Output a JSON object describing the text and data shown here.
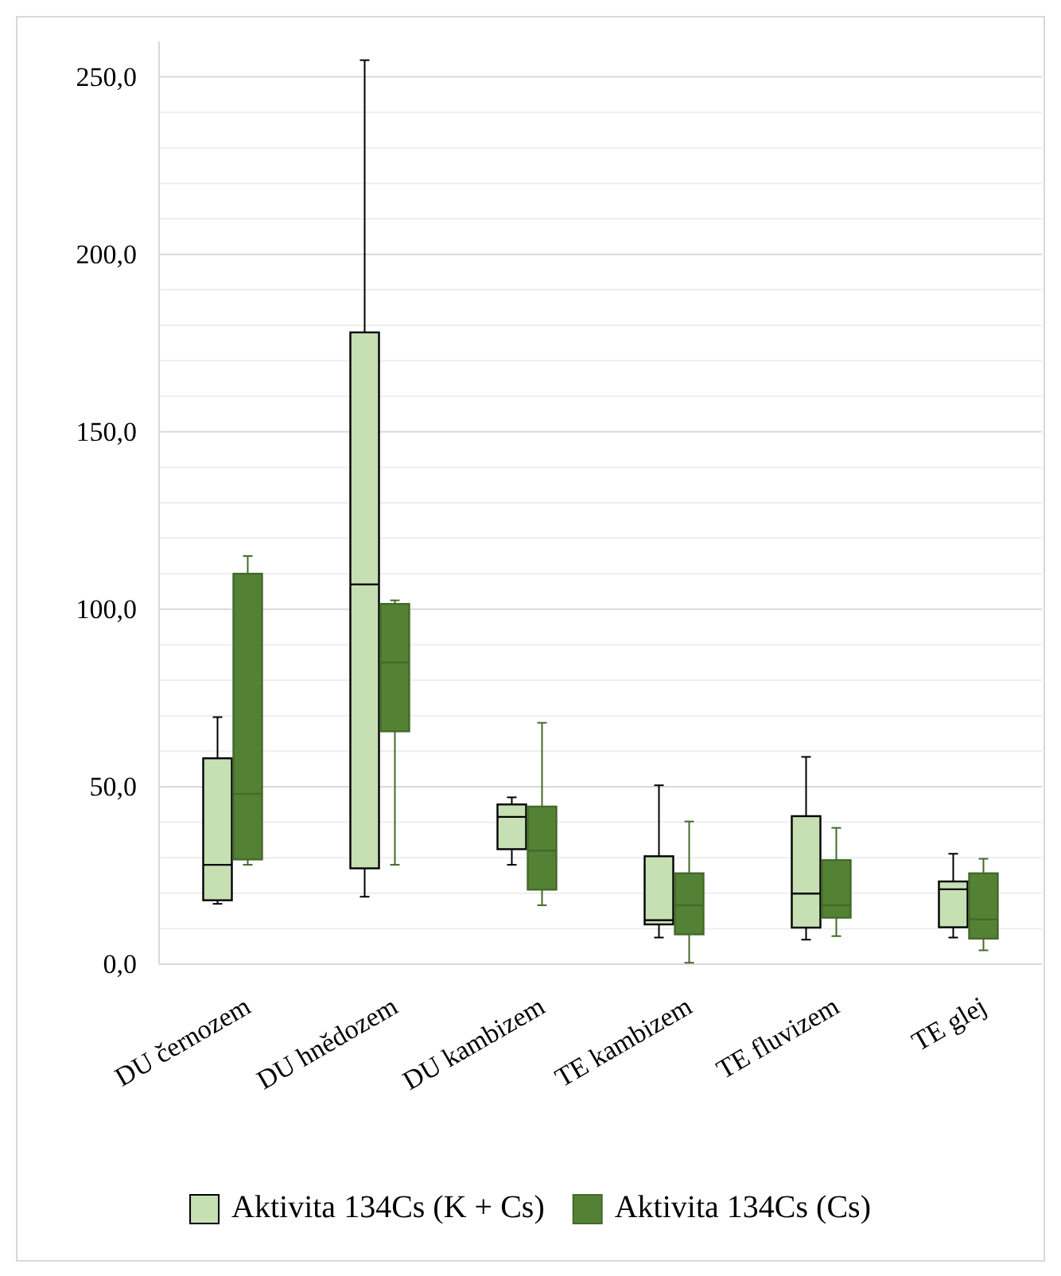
{
  "chart_data": {
    "type": "box",
    "categories": [
      "DU černozem",
      "DU hnědozem",
      "DU kambizem",
      "TE kambizem",
      "TE fluvizem",
      "TE glej"
    ],
    "ylim": [
      0,
      260
    ],
    "yticks": [
      {
        "value": 0,
        "label": "0,0"
      },
      {
        "value": 10,
        "label": null
      },
      {
        "value": 20,
        "label": null
      },
      {
        "value": 30,
        "label": null
      },
      {
        "value": 40,
        "label": null
      },
      {
        "value": 50,
        "label": "50,0"
      },
      {
        "value": 60,
        "label": null
      },
      {
        "value": 70,
        "label": null
      },
      {
        "value": 80,
        "label": null
      },
      {
        "value": 90,
        "label": null
      },
      {
        "value": 100,
        "label": "100,0"
      },
      {
        "value": 110,
        "label": null
      },
      {
        "value": 120,
        "label": null
      },
      {
        "value": 130,
        "label": null
      },
      {
        "value": 140,
        "label": null
      },
      {
        "value": 150,
        "label": "150,0"
      },
      {
        "value": 160,
        "label": null
      },
      {
        "value": 170,
        "label": null
      },
      {
        "value": 180,
        "label": null
      },
      {
        "value": 190,
        "label": null
      },
      {
        "value": 200,
        "label": "200,0"
      },
      {
        "value": 210,
        "label": null
      },
      {
        "value": 220,
        "label": null
      },
      {
        "value": 230,
        "label": null
      },
      {
        "value": 240,
        "label": null
      },
      {
        "value": 250,
        "label": "250,0"
      }
    ],
    "grid": true,
    "legend": "bottom",
    "series": [
      {
        "name": "Aktivita 134Cs (K + Cs)",
        "color": "#c6e0b4",
        "boxes": [
          {
            "low": 17,
            "q1": 18,
            "median": 28,
            "q3": 58,
            "high": 69.6
          },
          {
            "low": 19,
            "q1": 27,
            "median": 107,
            "q3": 178,
            "high": 254.7
          },
          {
            "low": 28,
            "q1": 32.4,
            "median": 41.5,
            "q3": 45,
            "high": 47
          },
          {
            "low": 7.5,
            "q1": 11.2,
            "median": 12.4,
            "q3": 30.4,
            "high": 50.4
          },
          {
            "low": 6.9,
            "q1": 10.3,
            "median": 19.9,
            "q3": 41.7,
            "high": 58.4
          },
          {
            "low": 7.5,
            "q1": 10.4,
            "median": 21.1,
            "q3": 23.3,
            "high": 31.1
          }
        ]
      },
      {
        "name": "Aktivita 134Cs (Cs)",
        "color": "#548235",
        "boxes": [
          {
            "low": 28,
            "q1": 29.5,
            "median": 48,
            "q3": 110,
            "high": 115
          },
          {
            "low": 28,
            "q1": 65.6,
            "median": 85,
            "q3": 101.5,
            "high": 102.5
          },
          {
            "low": 16.6,
            "q1": 21,
            "median": 32,
            "q3": 44.4,
            "high": 68
          },
          {
            "low": 0.4,
            "q1": 8.4,
            "median": 16.6,
            "q3": 25.6,
            "high": 40.2
          },
          {
            "low": 7.9,
            "q1": 13.1,
            "median": 16.6,
            "q3": 29.3,
            "high": 38.4
          },
          {
            "low": 3.9,
            "q1": 7.2,
            "median": 12.6,
            "q3": 25.6,
            "high": 29.7
          }
        ]
      }
    ]
  }
}
